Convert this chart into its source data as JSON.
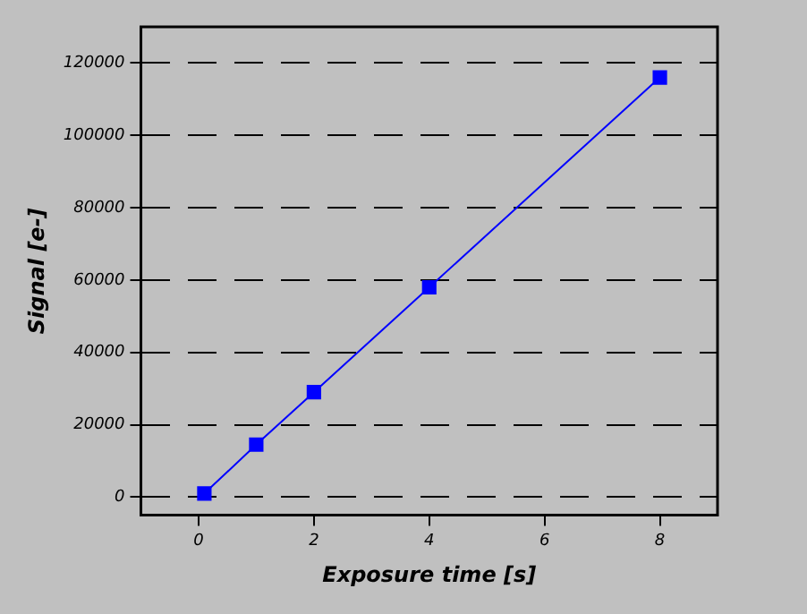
{
  "chart_data": {
    "type": "line",
    "xlabel": "Exposure time [s]",
    "ylabel": "Signal [e-]",
    "x": [
      0.1,
      1,
      2,
      4,
      8
    ],
    "series": [
      {
        "color": "#0000ff",
        "values": [
          1000,
          14500,
          29000,
          58000,
          116000
        ]
      }
    ],
    "xlim": [
      -1,
      9
    ],
    "xticks": [
      0,
      2,
      4,
      6,
      8
    ],
    "ylim": [
      -5000,
      130000
    ],
    "yticks": [
      0,
      20000,
      40000,
      60000,
      80000,
      100000,
      120000
    ],
    "grid": "y",
    "line_style": "solid",
    "marker": "square",
    "legend": false
  }
}
